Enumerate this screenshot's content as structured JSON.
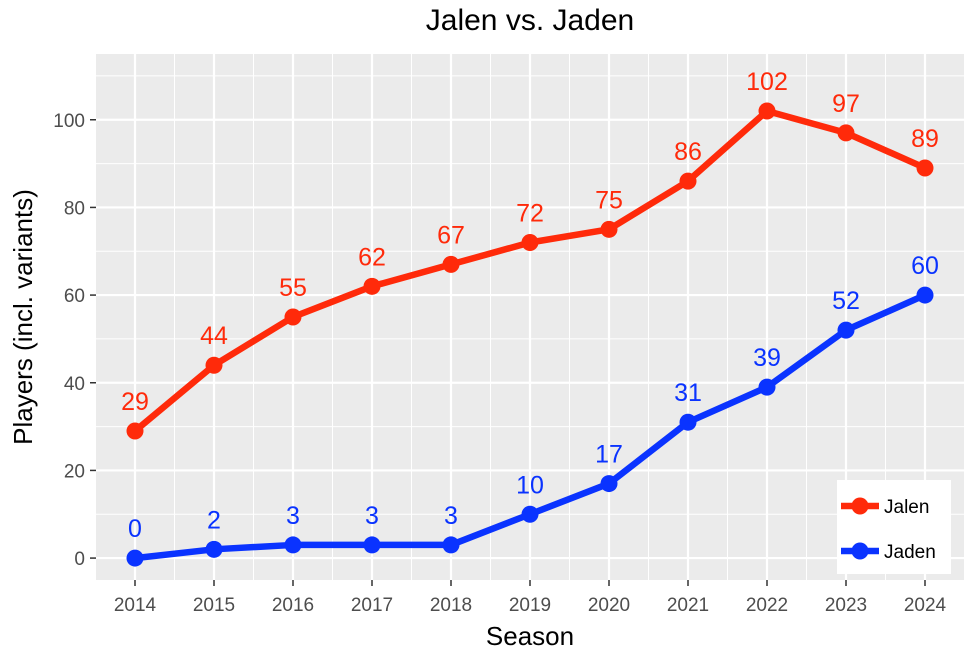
{
  "chart_data": {
    "type": "line",
    "title": "Jalen vs. Jaden",
    "xlabel": "Season",
    "ylabel": "Players (incl. variants)",
    "x": [
      "2014",
      "2015",
      "2016",
      "2017",
      "2018",
      "2019",
      "2020",
      "2021",
      "2022",
      "2023",
      "2024"
    ],
    "y_ticks": [
      "0",
      "20",
      "40",
      "60",
      "80",
      "100"
    ],
    "ylim": [
      -5,
      115
    ],
    "grid": true,
    "legend_position": "bottom-right",
    "series": [
      {
        "name": "Jalen",
        "color": "#ff2a0a",
        "values": [
          29,
          44,
          55,
          62,
          67,
          72,
          75,
          86,
          102,
          97,
          89
        ],
        "labels": [
          "29",
          "44",
          "55",
          "62",
          "67",
          "72",
          "75",
          "86",
          "102",
          "97",
          "89"
        ]
      },
      {
        "name": "Jaden",
        "color": "#0a33ff",
        "values": [
          0,
          2,
          3,
          3,
          3,
          10,
          17,
          31,
          39,
          52,
          60
        ],
        "labels": [
          "0",
          "2",
          "3",
          "3",
          "3",
          "10",
          "17",
          "31",
          "39",
          "52",
          "60"
        ]
      }
    ],
    "panel_background": "#ebebeb",
    "grid_color": "#ffffff"
  }
}
